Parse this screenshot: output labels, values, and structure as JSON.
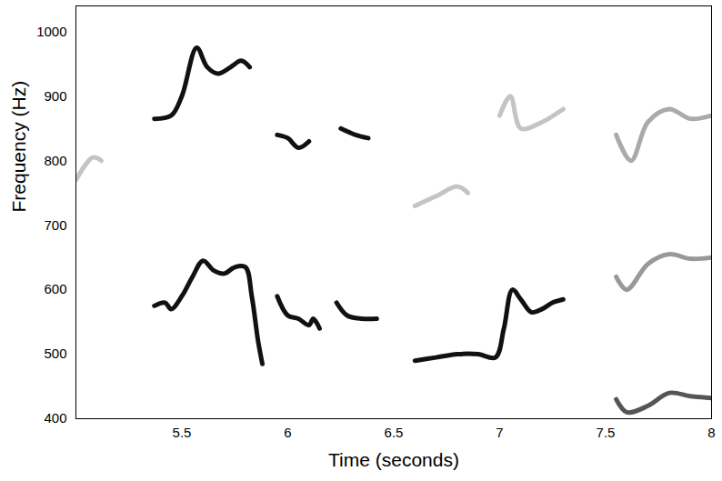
{
  "chart_data": {
    "type": "line",
    "x_label": "Time (seconds)",
    "y_label": "Frequency (Hz)",
    "xlim": [
      5,
      8
    ],
    "ylim": [
      400,
      1040
    ],
    "xticks": [
      5.5,
      6,
      6.5,
      7,
      7.5,
      8
    ],
    "yticks": [
      400,
      500,
      600,
      700,
      800,
      900,
      1000
    ],
    "grid": false,
    "series": [
      {
        "color": "#111111",
        "x": [
          5.37,
          5.42,
          5.45,
          5.5,
          5.55,
          5.6,
          5.65,
          5.7,
          5.75,
          5.8,
          5.83,
          5.86,
          5.88,
          5.9,
          5.95,
          6.0,
          6.05,
          6.1,
          6.12,
          6.15,
          6.19,
          6.23,
          6.28,
          6.35,
          6.42,
          6.5,
          6.6,
          6.7,
          6.8,
          6.9,
          6.98,
          7.02,
          7.06,
          7.1,
          7.15,
          7.2,
          7.25,
          7.3
        ],
        "values": [
          575,
          580,
          570,
          590,
          620,
          645,
          630,
          625,
          635,
          635,
          590,
          520,
          485,
          null,
          590,
          560,
          555,
          545,
          555,
          540,
          null,
          580,
          560,
          555,
          555,
          null,
          490,
          495,
          500,
          500,
          495,
          540,
          600,
          585,
          565,
          570,
          580,
          585
        ]
      },
      {
        "color": "#111111",
        "x": [
          5.37,
          5.45,
          5.5,
          5.57,
          5.62,
          5.67,
          5.73,
          5.78,
          5.82,
          5.88,
          5.95,
          6.0,
          6.05,
          6.1,
          6.18,
          6.25,
          6.32,
          6.38
        ],
        "values": [
          865,
          870,
          900,
          975,
          945,
          935,
          945,
          955,
          945,
          null,
          840,
          835,
          820,
          830,
          null,
          850,
          840,
          835
        ]
      },
      {
        "color": "#c4c4c4",
        "x": [
          5.0,
          5.08,
          5.12,
          5.3,
          6.6,
          6.7,
          6.8,
          6.85,
          6.93,
          7.0,
          7.05,
          7.1,
          7.2,
          7.3
        ],
        "values": [
          770,
          805,
          800,
          null,
          730,
          745,
          760,
          750,
          null,
          870,
          900,
          850,
          860,
          880
        ]
      },
      {
        "color": "#555555",
        "x": [
          7.55,
          7.6,
          7.7,
          7.8,
          7.9,
          8.0
        ],
        "values": [
          430,
          410,
          420,
          440,
          435,
          432
        ]
      },
      {
        "color": "#999999",
        "x": [
          7.55,
          7.6,
          7.7,
          7.8,
          7.9,
          8.0
        ],
        "values": [
          620,
          600,
          640,
          655,
          648,
          650
        ]
      },
      {
        "color": "#aaaaaa",
        "x": [
          7.55,
          7.62,
          7.7,
          7.8,
          7.9,
          8.0
        ],
        "values": [
          840,
          800,
          860,
          880,
          865,
          870
        ]
      }
    ]
  }
}
